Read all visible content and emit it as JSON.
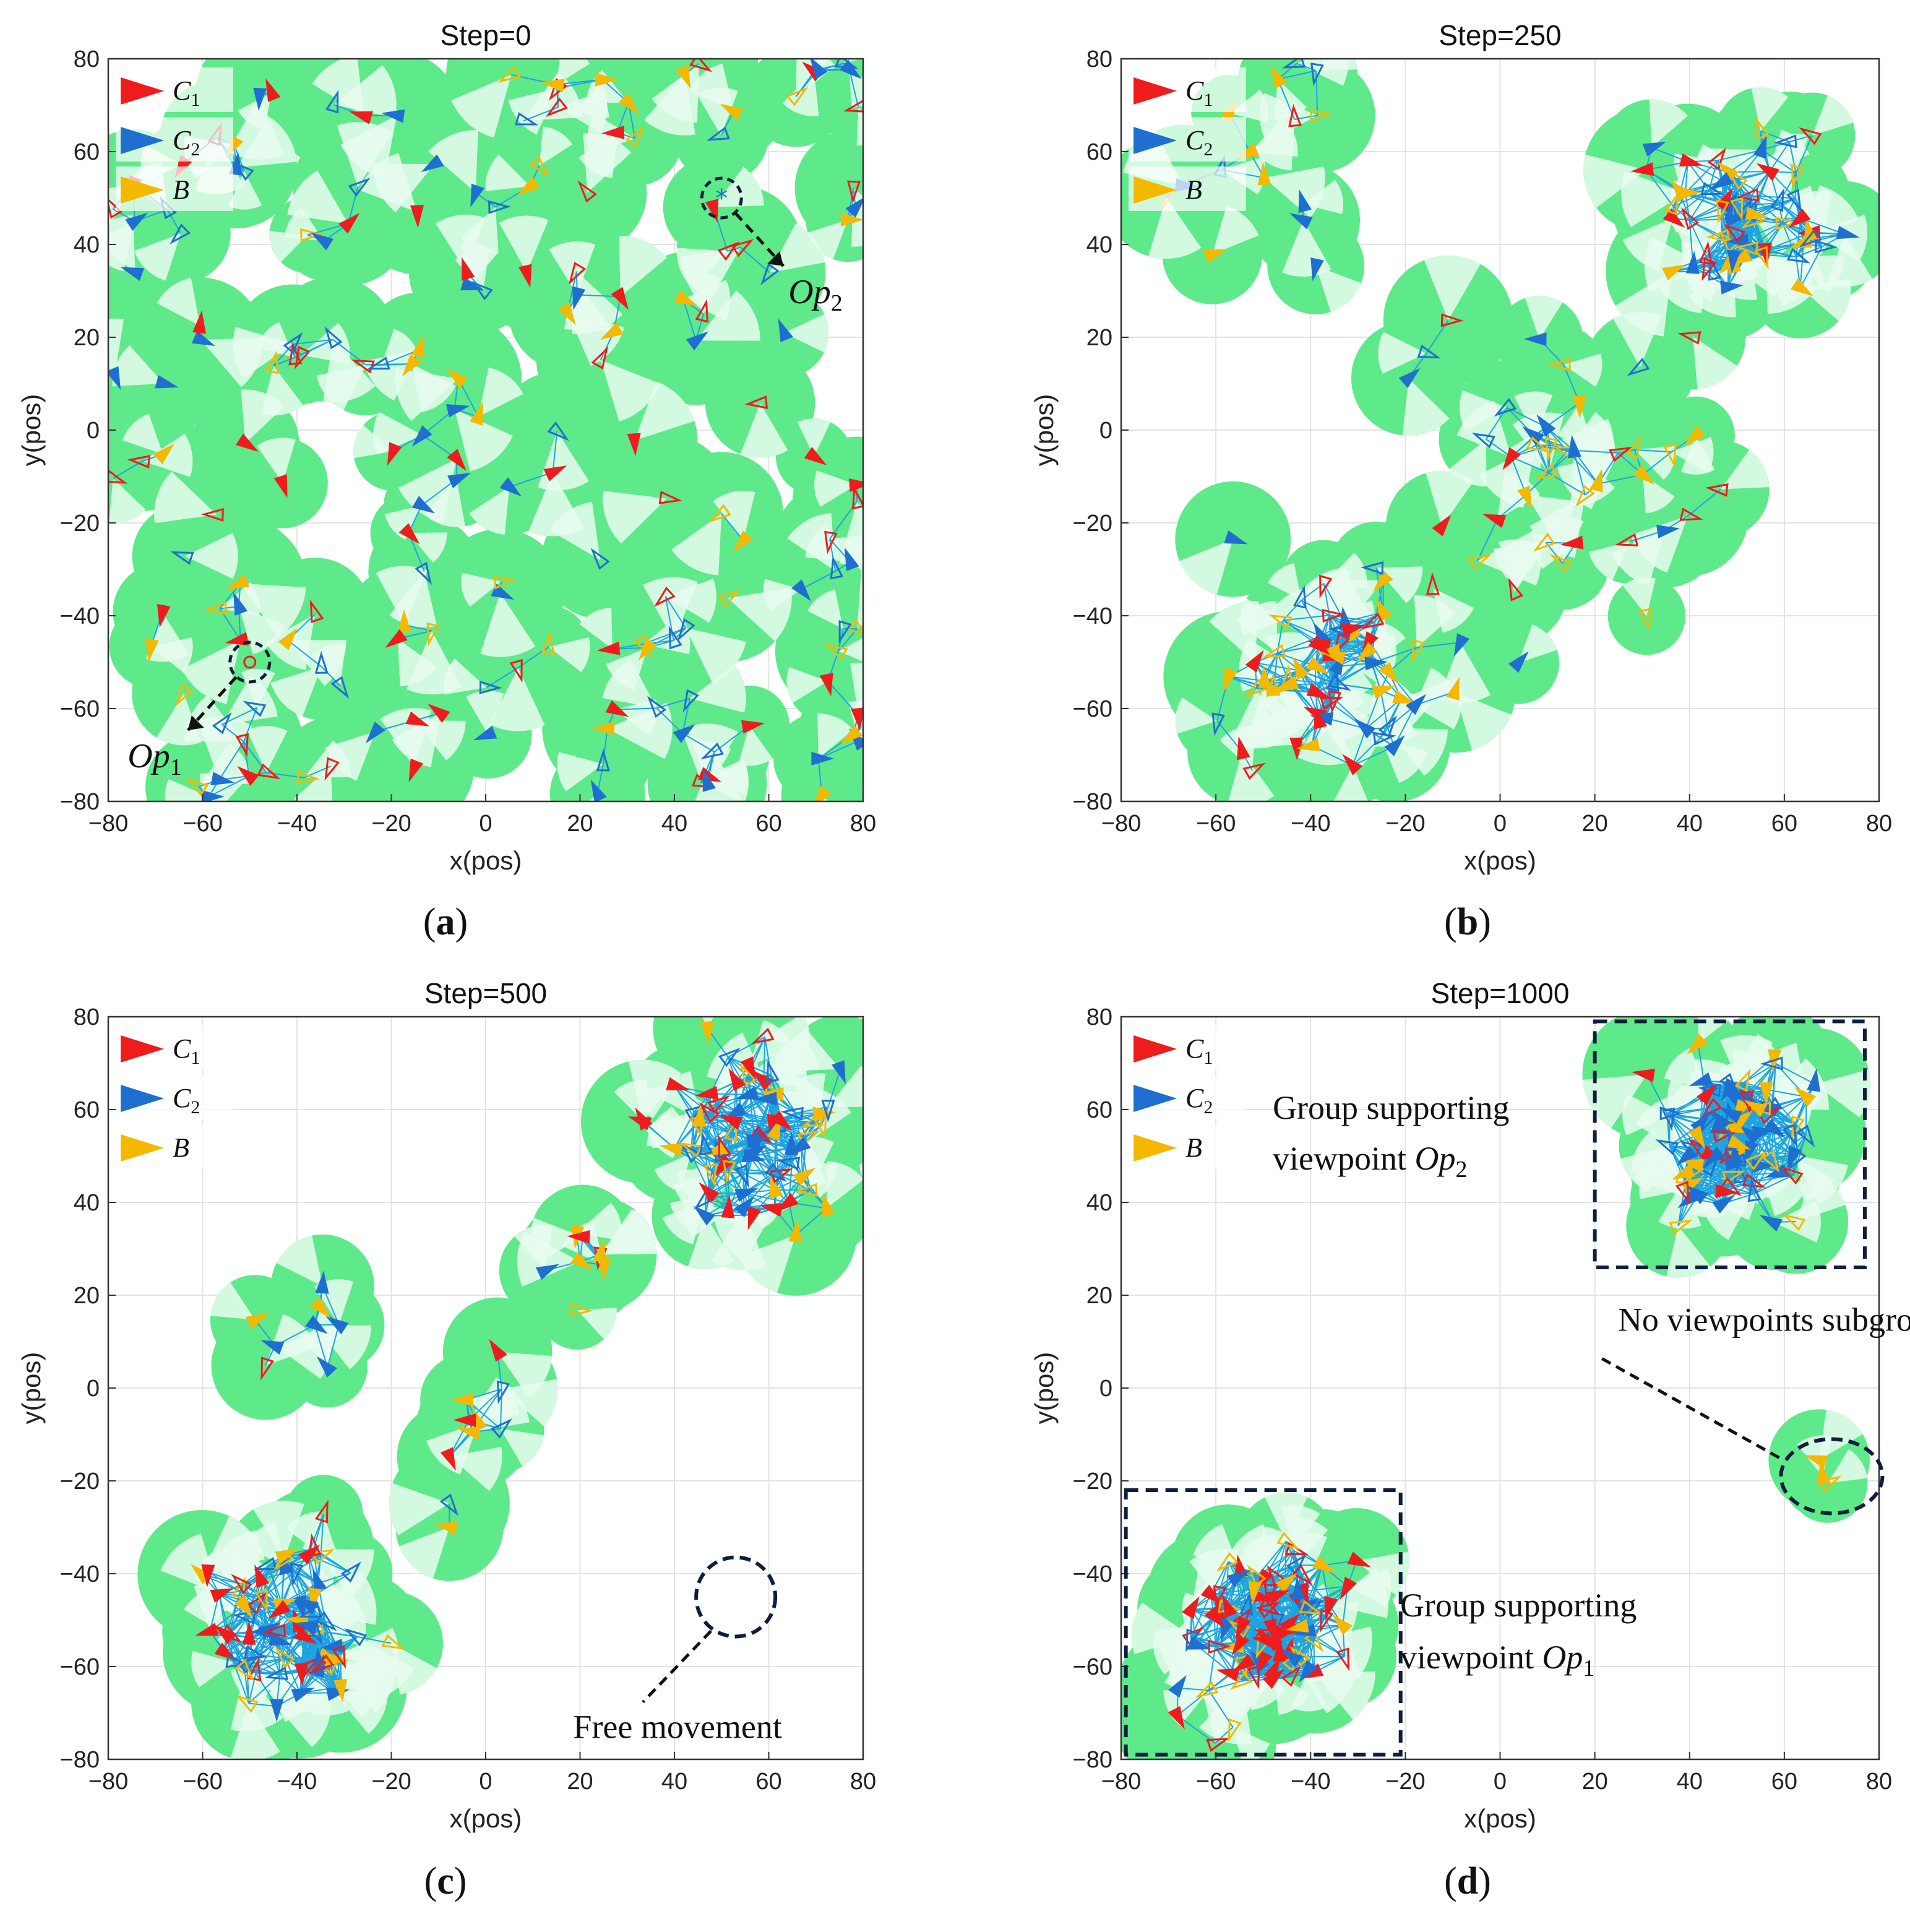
{
  "colors": {
    "C1": "#ee1c1c",
    "C2": "#1f6fd0",
    "B": "#f5b800",
    "agent_disc": "#5ee98a",
    "agent_disc_light": "#e8fbee",
    "link": "#1fa3e0",
    "marker_dark": "#0d1f3c"
  },
  "legend": [
    {
      "series": "C1",
      "name": "C",
      "sub": "1"
    },
    {
      "series": "C2",
      "name": "C",
      "sub": "2"
    },
    {
      "series": "B",
      "name": "B",
      "sub": ""
    }
  ],
  "chart_data": [
    {
      "type": "scatter",
      "panel": "(a)",
      "title": "Step=0",
      "xlabel": "x(pos)",
      "ylabel": "y(pos)",
      "xlim": [
        -80,
        80
      ],
      "ylim": [
        -80,
        80
      ],
      "xticks": [
        -80,
        -60,
        -40,
        -20,
        0,
        20,
        40,
        60,
        80
      ],
      "yticks": [
        -80,
        -60,
        -40,
        -20,
        0,
        20,
        40,
        60,
        80
      ],
      "grid": true,
      "description": "agents scattered uniformly at random",
      "agent_counts": {
        "C1": 60,
        "C2": 60,
        "B": 55
      },
      "viewpoints": [
        {
          "name": "Op",
          "sub": "1",
          "x": -50,
          "y": -50,
          "marker": "circle",
          "color": "#ee1c1c"
        },
        {
          "name": "Op",
          "sub": "2",
          "x": 50,
          "y": 50,
          "marker": "asterisk",
          "color": "#1f6fd0"
        }
      ]
    },
    {
      "type": "scatter",
      "panel": "(b)",
      "title": "Step=250",
      "xlabel": "x(pos)",
      "ylabel": "y(pos)",
      "xlim": [
        -80,
        80
      ],
      "ylim": [
        -80,
        80
      ],
      "xticks": [
        -80,
        -60,
        -40,
        -20,
        0,
        20,
        40,
        60,
        80
      ],
      "yticks": [
        -80,
        -60,
        -40,
        -20,
        0,
        20,
        40,
        60,
        80
      ],
      "grid": true,
      "description": "agents begin gathering near both viewpoints",
      "agent_counts": {
        "C1": 60,
        "C2": 60,
        "B": 55
      }
    },
    {
      "type": "scatter",
      "panel": "(c)",
      "title": "Step=500",
      "xlabel": "x(pos)",
      "ylabel": "y(pos)",
      "xlim": [
        -80,
        80
      ],
      "ylim": [
        -80,
        80
      ],
      "xticks": [
        -80,
        -60,
        -40,
        -20,
        0,
        20,
        40,
        60,
        80
      ],
      "yticks": [
        -80,
        -60,
        -40,
        -20,
        0,
        20,
        40,
        60,
        80
      ],
      "grid": true,
      "description": "two dense clusters with a diagonal trail between them",
      "agent_counts": {
        "C1": 60,
        "C2": 60,
        "B": 55
      },
      "annotations": [
        {
          "text": "Free movement",
          "x": 53,
          "y": -45
        }
      ]
    },
    {
      "type": "scatter",
      "panel": "(d)",
      "title": "Step=1000",
      "xlabel": "x(pos)",
      "ylabel": "y(pos)",
      "xlim": [
        -80,
        80
      ],
      "ylim": [
        -80,
        80
      ],
      "xticks": [
        -80,
        -60,
        -40,
        -20,
        0,
        20,
        40,
        60,
        80
      ],
      "yticks": [
        -80,
        -60,
        -40,
        -20,
        0,
        20,
        40,
        60,
        80
      ],
      "grid": true,
      "description": "converged groups around Op1 and Op2",
      "agent_counts": {
        "C1": 60,
        "C2": 60,
        "B": 55
      },
      "group_boxes": [
        {
          "label": "Op2 group",
          "x": [
            20,
            77
          ],
          "y": [
            26,
            79
          ]
        },
        {
          "label": "Op1 group",
          "x": [
            -79,
            -21
          ],
          "y": [
            -79,
            -22
          ]
        }
      ],
      "annotations": [
        {
          "line1": "Group supporting",
          "line2_prefix": "viewpoint ",
          "italic": "Op",
          "sub": "2",
          "x": -48,
          "y": 58
        },
        {
          "text": "No viewpoints subgroup",
          "x": 70,
          "y": -19
        },
        {
          "line1": "Group supporting",
          "line2_prefix": "viewpoint ",
          "italic": "Op",
          "sub": "1",
          "x": -10,
          "y": -50
        }
      ]
    }
  ]
}
